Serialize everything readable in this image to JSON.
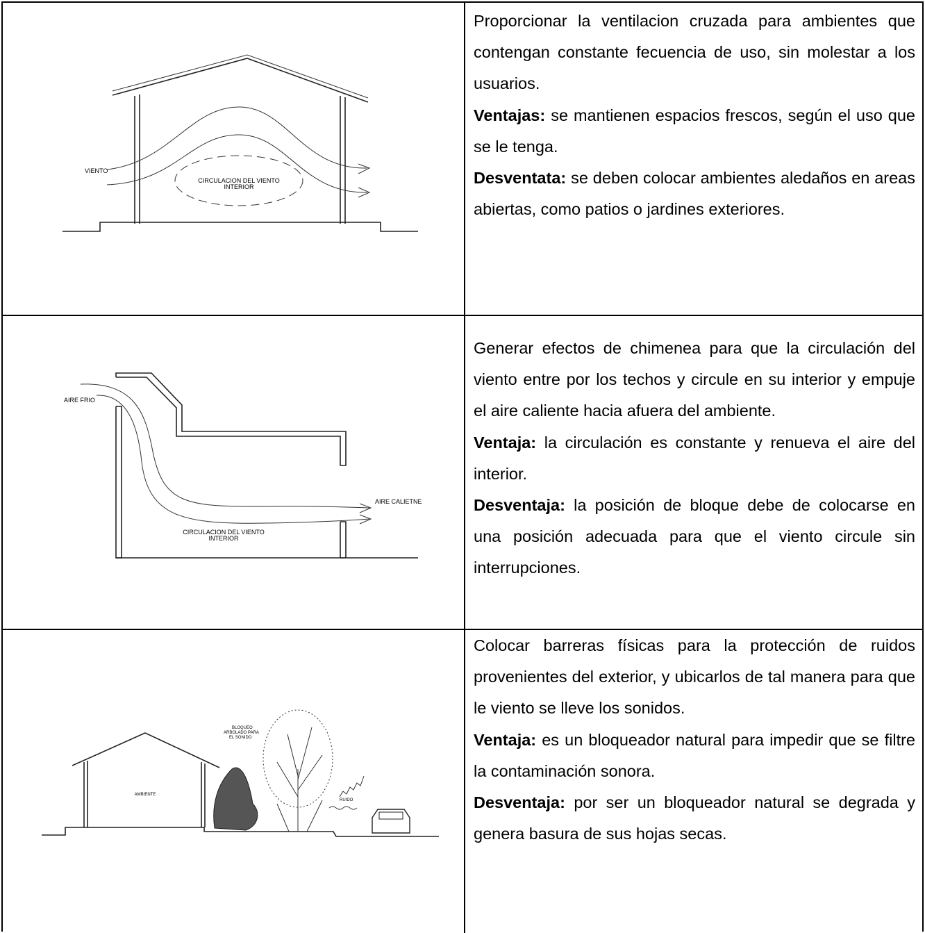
{
  "table": {
    "rows": [
      {
        "diagram": {
          "labels": [
            "VIENTO",
            "CIRCULACION DEL VIENTO",
            "INTERIOR"
          ]
        },
        "description": "Proporcionar la ventilacion cruzada para ambientes que contengan constante fecuencia de uso, sin molestar a los usuarios.",
        "advantage": {
          "label": "Ventajas:",
          "text": "se mantienen espacios frescos, según el uso que se le tenga."
        },
        "disadvantage": {
          "label": "Desventata:",
          "text": "se deben colocar ambientes aledaños en areas abiertas, como patios o jardines exteriores."
        }
      },
      {
        "diagram": {
          "labels": [
            "AIRE FRIO",
            "AIRE CALIETNE",
            "CIRCULACION DEL VIENTO",
            "INTERIOR"
          ]
        },
        "description": "Generar efectos de chimenea para que la circulación del viento entre por los techos y circule en su interior y empuje el aire caliente hacia afuera del ambiente.",
        "advantage": {
          "label": "Ventaja:",
          "text": "la circulación es constante y renueva el aire del interior."
        },
        "disadvantage": {
          "label": "Desventaja:",
          "text": "la posición de bloque debe de colocarse en una posición adecuada para que el viento circule sin interrupciones."
        }
      },
      {
        "diagram": {
          "labels": [
            "BLOQUEO",
            "ARBOLADO PARA",
            "EL SONIDO",
            "AMBIENTE",
            "RUIDO"
          ]
        },
        "description": "Colocar barreras físicas para la protección de ruidos provenientes del exterior, y ubicarlos de tal manera para que le viento se lleve los sonidos.",
        "advantage": {
          "label": "Ventaja:",
          "text": "es un bloqueador natural para impedir que se filtre la contaminación sonora."
        },
        "disadvantage": {
          "label": "Desventaja:",
          "text": "por ser un bloqueador natural se degrada y genera basura de sus hojas secas."
        }
      }
    ]
  }
}
